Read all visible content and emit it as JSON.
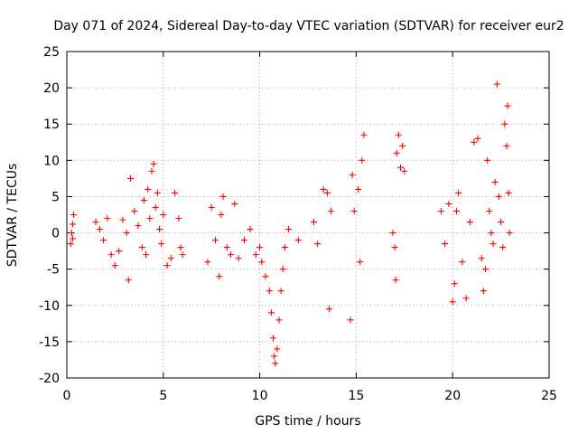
{
  "chart_data": {
    "type": "scatter",
    "title": "Day 071 of 2024, Sidereal Day-to-day VTEC variation (SDTVAR) for receiver eur2",
    "xlabel": "GPS time / hours",
    "ylabel": "SDTVAR / TECUs",
    "xlim": [
      0,
      25
    ],
    "ylim": [
      -20,
      25
    ],
    "xticks": [
      0,
      5,
      10,
      15,
      20,
      25
    ],
    "yticks": [
      -20,
      -15,
      -10,
      -5,
      0,
      5,
      10,
      15,
      20,
      25
    ],
    "grid": true,
    "marker": "plus",
    "color": "#ff0000",
    "series": [
      {
        "name": "SDTVAR",
        "points": [
          [
            0.2,
            -1.5
          ],
          [
            0.25,
            0.0
          ],
          [
            0.3,
            1.2
          ],
          [
            0.35,
            2.5
          ],
          [
            0.3,
            -0.8
          ],
          [
            1.5,
            1.5
          ],
          [
            1.7,
            0.5
          ],
          [
            1.9,
            -1.0
          ],
          [
            2.1,
            2.0
          ],
          [
            2.3,
            -3.0
          ],
          [
            2.5,
            -4.5
          ],
          [
            2.7,
            -2.5
          ],
          [
            2.9,
            1.8
          ],
          [
            3.1,
            0.0
          ],
          [
            3.2,
            -6.5
          ],
          [
            3.3,
            7.5
          ],
          [
            3.5,
            3.0
          ],
          [
            3.7,
            1.0
          ],
          [
            3.9,
            -2.0
          ],
          [
            4.0,
            4.5
          ],
          [
            4.1,
            -3.0
          ],
          [
            4.2,
            6.0
          ],
          [
            4.3,
            2.0
          ],
          [
            4.4,
            8.5
          ],
          [
            4.5,
            9.5
          ],
          [
            4.6,
            3.5
          ],
          [
            4.7,
            5.5
          ],
          [
            4.8,
            0.5
          ],
          [
            4.9,
            -1.5
          ],
          [
            5.0,
            2.5
          ],
          [
            5.2,
            -4.5
          ],
          [
            5.4,
            -3.5
          ],
          [
            5.6,
            5.5
          ],
          [
            5.8,
            2.0
          ],
          [
            5.9,
            -2.0
          ],
          [
            6.0,
            -3.0
          ],
          [
            7.3,
            -4.0
          ],
          [
            7.5,
            3.5
          ],
          [
            7.7,
            -1.0
          ],
          [
            7.9,
            -6.0
          ],
          [
            8.0,
            2.5
          ],
          [
            8.1,
            5.0
          ],
          [
            8.3,
            -2.0
          ],
          [
            8.5,
            -3.0
          ],
          [
            8.7,
            4.0
          ],
          [
            8.9,
            -3.5
          ],
          [
            9.2,
            -1.0
          ],
          [
            9.5,
            0.5
          ],
          [
            9.8,
            -3.0
          ],
          [
            10.0,
            -2.0
          ],
          [
            10.1,
            -4.0
          ],
          [
            10.3,
            -6.0
          ],
          [
            10.5,
            -8.0
          ],
          [
            10.6,
            -11.0
          ],
          [
            10.7,
            -14.5
          ],
          [
            10.75,
            -17.0
          ],
          [
            10.8,
            -18.0
          ],
          [
            10.9,
            -16.0
          ],
          [
            11.0,
            -12.0
          ],
          [
            11.1,
            -8.0
          ],
          [
            11.2,
            -5.0
          ],
          [
            11.3,
            -2.0
          ],
          [
            11.5,
            0.5
          ],
          [
            12.0,
            -1.0
          ],
          [
            12.8,
            1.5
          ],
          [
            13.0,
            -1.5
          ],
          [
            13.3,
            6.0
          ],
          [
            13.5,
            5.5
          ],
          [
            13.6,
            -10.5
          ],
          [
            13.7,
            3.0
          ],
          [
            14.7,
            -12.0
          ],
          [
            14.8,
            8.0
          ],
          [
            14.9,
            3.0
          ],
          [
            15.1,
            6.0
          ],
          [
            15.2,
            -4.0
          ],
          [
            15.3,
            10.0
          ],
          [
            15.4,
            13.5
          ],
          [
            16.9,
            0.0
          ],
          [
            17.0,
            -2.0
          ],
          [
            17.05,
            -6.5
          ],
          [
            17.1,
            11.0
          ],
          [
            17.2,
            13.5
          ],
          [
            17.3,
            9.0
          ],
          [
            17.4,
            12.0
          ],
          [
            17.5,
            8.5
          ],
          [
            19.4,
            3.0
          ],
          [
            19.6,
            -1.5
          ],
          [
            19.8,
            4.0
          ],
          [
            20.0,
            -9.5
          ],
          [
            20.1,
            -7.0
          ],
          [
            20.2,
            3.0
          ],
          [
            20.3,
            5.5
          ],
          [
            20.5,
            -4.0
          ],
          [
            20.7,
            -9.0
          ],
          [
            20.9,
            1.5
          ],
          [
            21.1,
            12.5
          ],
          [
            21.3,
            13.0
          ],
          [
            21.5,
            -3.5
          ],
          [
            21.6,
            -8.0
          ],
          [
            21.7,
            -5.0
          ],
          [
            21.8,
            10.0
          ],
          [
            21.9,
            3.0
          ],
          [
            22.0,
            0.0
          ],
          [
            22.1,
            -1.5
          ],
          [
            22.2,
            7.0
          ],
          [
            22.3,
            20.5
          ],
          [
            22.4,
            5.0
          ],
          [
            22.5,
            1.5
          ],
          [
            22.6,
            -2.0
          ],
          [
            22.7,
            15.0
          ],
          [
            22.8,
            12.0
          ],
          [
            22.85,
            17.5
          ],
          [
            22.9,
            5.5
          ],
          [
            22.95,
            0.0
          ]
        ]
      }
    ]
  }
}
